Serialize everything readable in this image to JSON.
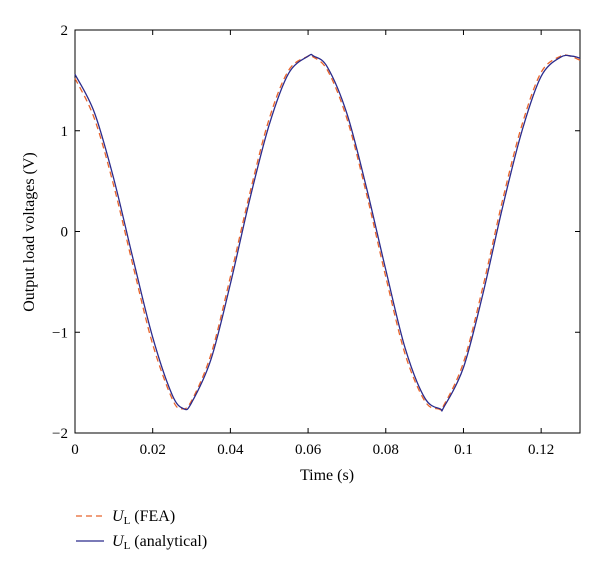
{
  "chart_data": {
    "type": "line",
    "title": "",
    "xlabel": "Time (s)",
    "ylabel": "Output load voltages (V)",
    "xlim": [
      0,
      0.13
    ],
    "ylim": [
      -2,
      2
    ],
    "xticks": [
      0,
      0.02,
      0.04,
      0.06,
      0.08,
      0.1,
      0.12
    ],
    "xtick_labels": [
      "0",
      "0.02",
      "0.04",
      "0.06",
      "0.08",
      "0.1",
      "0.12"
    ],
    "yticks": [
      -2,
      -1,
      0,
      1,
      2
    ],
    "ytick_labels": [
      "−2",
      "−1",
      "0",
      "1",
      "2"
    ],
    "grid": false,
    "legend_position": "below-left",
    "series": [
      {
        "name_symbol": "U",
        "name_subscript": "L",
        "name_suffix": " (FEA)",
        "style": "dashed",
        "color": "#e8642c",
        "x": [
          0,
          0.005,
          0.01,
          0.015,
          0.02,
          0.025,
          0.0275,
          0.03,
          0.035,
          0.04,
          0.045,
          0.05,
          0.055,
          0.06,
          0.061,
          0.065,
          0.07,
          0.075,
          0.08,
          0.085,
          0.09,
          0.0935,
          0.095,
          0.1,
          0.105,
          0.11,
          0.115,
          0.12,
          0.125,
          0.1275,
          0.13
        ],
        "y": [
          1.52,
          1.12,
          0.45,
          -0.35,
          -1.12,
          -1.66,
          -1.76,
          -1.68,
          -1.22,
          -0.45,
          0.38,
          1.12,
          1.6,
          1.74,
          1.74,
          1.6,
          1.12,
          0.38,
          -0.45,
          -1.22,
          -1.68,
          -1.76,
          -1.72,
          -1.3,
          -0.55,
          0.3,
          1.05,
          1.58,
          1.74,
          1.74,
          1.7
        ]
      },
      {
        "name_symbol": "U",
        "name_subscript": "L",
        "name_suffix": " (analytical)",
        "style": "solid",
        "color": "#2b2b8c",
        "x": [
          0,
          0.005,
          0.01,
          0.015,
          0.02,
          0.025,
          0.028,
          0.03,
          0.035,
          0.04,
          0.045,
          0.05,
          0.055,
          0.06,
          0.0615,
          0.065,
          0.07,
          0.075,
          0.08,
          0.085,
          0.09,
          0.094,
          0.095,
          0.1,
          0.105,
          0.11,
          0.115,
          0.12,
          0.125,
          0.128,
          0.13
        ],
        "y": [
          1.56,
          1.18,
          0.52,
          -0.28,
          -1.05,
          -1.62,
          -1.76,
          -1.7,
          -1.27,
          -0.52,
          0.32,
          1.06,
          1.57,
          1.74,
          1.74,
          1.63,
          1.17,
          0.44,
          -0.38,
          -1.16,
          -1.65,
          -1.76,
          -1.74,
          -1.35,
          -0.62,
          0.23,
          0.99,
          1.54,
          1.73,
          1.74,
          1.72
        ]
      }
    ]
  }
}
